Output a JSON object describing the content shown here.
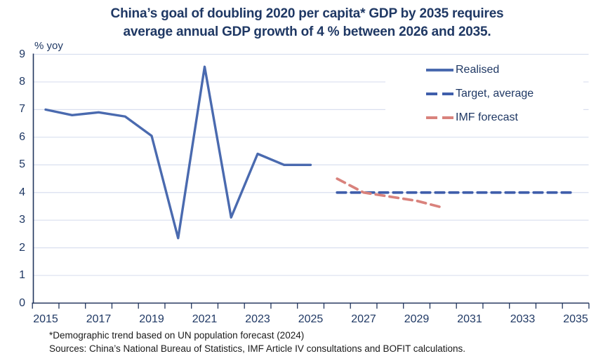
{
  "chart_data": {
    "type": "line",
    "title_lines": [
      "China’s goal of doubling 2020 per capita* GDP by 2035 requires",
      "average annual GDP growth of 4 % between 2026 and 2035."
    ],
    "ylabel": "% yoy",
    "xlabel": "",
    "ylim": [
      0,
      9
    ],
    "xlim": [
      2015,
      2035
    ],
    "grid": "horizontal-light",
    "legend_position": "top-right",
    "ytick_values": [
      0,
      1,
      2,
      3,
      4,
      5,
      6,
      7,
      8,
      9
    ],
    "xtick_labels": [
      2015,
      2017,
      2019,
      2021,
      2023,
      2025,
      2027,
      2029,
      2031,
      2033,
      2035
    ],
    "series": [
      {
        "name": "Realised",
        "style": "solid",
        "color": "#4A6AAF",
        "x": [
          2015,
          2016,
          2017,
          2018,
          2019,
          2020,
          2021,
          2022,
          2023,
          2024,
          2025
        ],
        "values": [
          7.0,
          6.8,
          6.9,
          6.75,
          6.05,
          2.35,
          8.55,
          3.1,
          5.4,
          5.0,
          5.0
        ]
      },
      {
        "name": "Target, average",
        "style": "dashed",
        "color": "#3F5EAB",
        "x": [
          2026,
          2027,
          2028,
          2029,
          2030,
          2031,
          2032,
          2033,
          2034,
          2035
        ],
        "values": [
          4.0,
          4.0,
          4.0,
          4.0,
          4.0,
          4.0,
          4.0,
          4.0,
          4.0,
          4.0
        ]
      },
      {
        "name": "IMF forecast",
        "style": "dashed",
        "color": "#D9827C",
        "x": [
          2026,
          2027,
          2028,
          2029,
          2030
        ],
        "values": [
          4.5,
          4.0,
          3.85,
          3.7,
          3.45
        ]
      }
    ]
  },
  "footnotes": {
    "note": "*Demographic trend based on UN population forecast (2024)",
    "sources": "Sources: China’s National Bureau of Statistics, IMF Article IV consultations and BOFIT calculations."
  },
  "colors": {
    "text_navy": "#1F3864",
    "axis_line": "#22365E",
    "gridline": "#D9DFEF",
    "realised": "#4A6AAF",
    "target": "#3F5EAB",
    "imf": "#D9827C",
    "footnote_text": "#1A1A1A",
    "background": "#FFFFFF"
  }
}
